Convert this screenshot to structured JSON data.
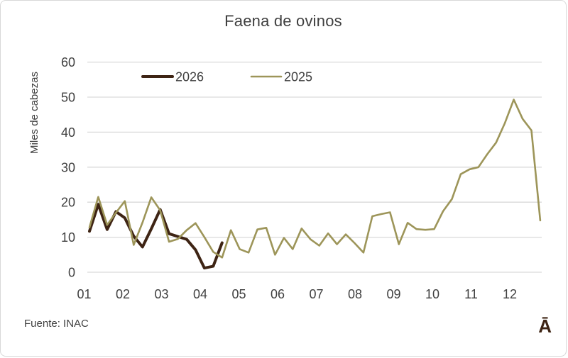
{
  "header": {
    "title": "Faena de ovinos"
  },
  "footer": {
    "source": "Fuente: INAC",
    "watermark": "Ā"
  },
  "colors": {
    "series_2026": "#3e2414",
    "series_2025": "#9d9559",
    "text": "#404040",
    "title_text": "#3f3f3f",
    "gridline": "#d9d9d9",
    "background": "#ffffff"
  },
  "chart_data": {
    "type": "line",
    "title": "Faena de ovinos",
    "xlabel": "",
    "ylabel": "Miles de cabezas",
    "ylim": [
      0,
      60
    ],
    "yticks": [
      0,
      10,
      20,
      30,
      40,
      50,
      60
    ],
    "x_unit": "week",
    "x_tick_labels": [
      "01",
      "02",
      "03",
      "04",
      "05",
      "06",
      "07",
      "08",
      "09",
      "10",
      "11",
      "12"
    ],
    "grid": true,
    "legend_position": "top",
    "legend": [
      {
        "label": "2026",
        "color": "#3e2414"
      },
      {
        "label": "2025",
        "color": "#9d9559"
      }
    ],
    "series": [
      {
        "name": "2026",
        "color": "#3e2414",
        "stroke_width": 4,
        "start_week": 1,
        "values": [
          11.7,
          19.4,
          12.2,
          17.3,
          15.5,
          10.3,
          7.2,
          12.4,
          17.9,
          11.0,
          10.2,
          9.4,
          6.4,
          1.2,
          1.7,
          8.4
        ]
      },
      {
        "name": "2025",
        "color": "#9d9559",
        "stroke_width": 2.6,
        "start_week": 1,
        "values": [
          12.8,
          21.5,
          13.5,
          17.0,
          20.3,
          7.8,
          14.2,
          21.4,
          17.7,
          8.7,
          9.5,
          12.0,
          14.0,
          10.0,
          5.8,
          4.2,
          12.0,
          6.6,
          5.6,
          12.2,
          12.7,
          5.0,
          9.8,
          6.6,
          12.5,
          9.4,
          7.6,
          11.1,
          8.0,
          10.8,
          8.3,
          5.6,
          16.0,
          16.6,
          17.1,
          8.0,
          14.1,
          12.3,
          12.1,
          12.3,
          17.4,
          20.9,
          28.0,
          29.4,
          30.0,
          33.7,
          37.0,
          42.6,
          49.3,
          43.8,
          40.5,
          14.8
        ]
      }
    ]
  }
}
